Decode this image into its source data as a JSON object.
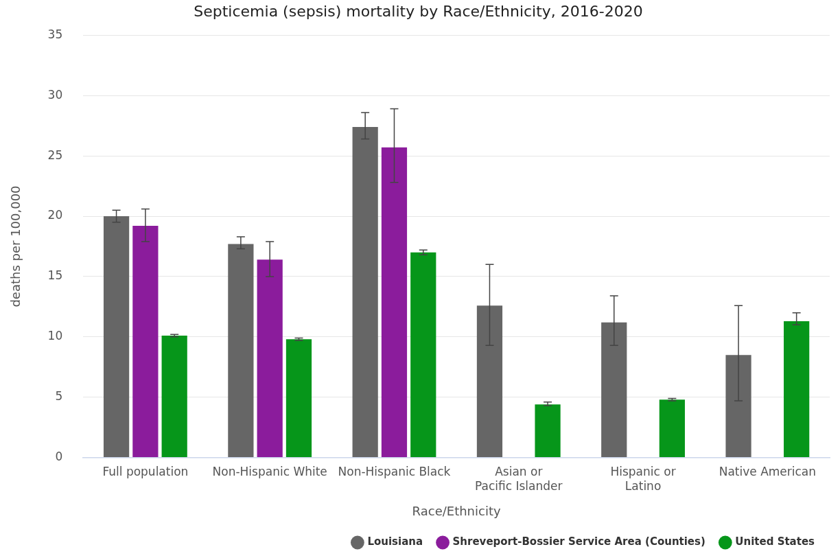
{
  "chart_data": {
    "type": "bar",
    "title": "Septicemia (sepsis) mortality by Race/Ethnicity, 2016-2020",
    "xlabel": "Race/Ethnicity",
    "ylabel": "deaths per 100,000",
    "categories": [
      "Full population",
      "Non-Hispanic White",
      "Non-Hispanic Black",
      "Asian or Pacific Islander",
      "Hispanic or Latino",
      "Native American"
    ],
    "series": [
      {
        "name": "Louisiana",
        "color": "#666666",
        "values": [
          20.0,
          17.7,
          27.4,
          12.6,
          11.2,
          8.5
        ],
        "errors": [
          [
            19.5,
            20.5
          ],
          [
            17.3,
            18.3
          ],
          [
            26.4,
            28.6
          ],
          [
            9.3,
            16.0
          ],
          [
            9.3,
            13.4
          ],
          [
            4.7,
            12.6
          ]
        ]
      },
      {
        "name": "Shreveport-Bossier Service Area (Counties)",
        "color": "#8b1c9c",
        "values": [
          19.2,
          16.4,
          25.7,
          null,
          null,
          null
        ],
        "errors": [
          [
            17.9,
            20.6
          ],
          [
            15.0,
            17.9
          ],
          [
            22.8,
            28.9
          ],
          null,
          null,
          null
        ]
      },
      {
        "name": "United States",
        "color": "#06961a",
        "values": [
          10.1,
          9.8,
          17.0,
          4.4,
          4.8,
          11.3
        ],
        "errors": [
          [
            10.0,
            10.2
          ],
          [
            9.7,
            9.9
          ],
          [
            16.8,
            17.2
          ],
          [
            4.3,
            4.6
          ],
          [
            4.7,
            4.9
          ],
          [
            11.0,
            12.0
          ]
        ]
      }
    ],
    "ylim": [
      0,
      35
    ],
    "yticks": [
      0,
      5,
      10,
      15,
      20,
      25,
      30,
      35
    ],
    "grid": "y",
    "legend": "bottom right"
  }
}
